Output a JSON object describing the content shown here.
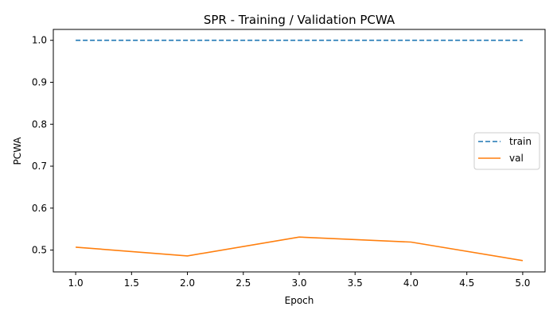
{
  "chart_data": {
    "type": "line",
    "title": "SPR - Training / Validation PCWA",
    "xlabel": "Epoch",
    "ylabel": "PCWA",
    "xlim": [
      0.8,
      5.2
    ],
    "ylim": [
      0.448,
      1.026
    ],
    "x": [
      1,
      2,
      3,
      4,
      5
    ],
    "xticks": [
      "1.0",
      "1.5",
      "2.0",
      "2.5",
      "3.0",
      "3.5",
      "4.0",
      "4.5",
      "5.0"
    ],
    "xtick_values": [
      1.0,
      1.5,
      2.0,
      2.5,
      3.0,
      3.5,
      4.0,
      4.5,
      5.0
    ],
    "yticks": [
      "0.5",
      "0.6",
      "0.7",
      "0.8",
      "0.9",
      "1.0"
    ],
    "ytick_values": [
      0.5,
      0.6,
      0.7,
      0.8,
      0.9,
      1.0
    ],
    "grid": false,
    "legend_position": "center-right",
    "series": [
      {
        "name": "train",
        "values": [
          1.0,
          1.0,
          1.0,
          1.0,
          1.0
        ],
        "color": "#1f77b4",
        "style": "dashed"
      },
      {
        "name": "val",
        "values": [
          0.507,
          0.486,
          0.531,
          0.519,
          0.475
        ],
        "color": "#ff7f0e",
        "style": "solid"
      }
    ]
  }
}
